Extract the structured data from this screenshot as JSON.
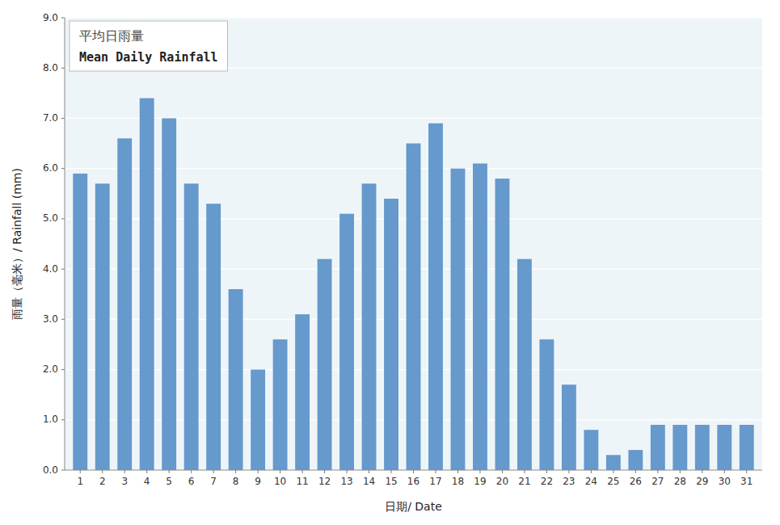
{
  "chart_data": {
    "type": "bar",
    "xlabel": "日期/ Date",
    "ylabel": "雨量（毫米）/ Rainfall (mm)",
    "annotations": [
      "平均日雨量",
      "Mean Daily Rainfall"
    ],
    "x": [
      1,
      2,
      3,
      4,
      5,
      6,
      7,
      8,
      9,
      10,
      11,
      12,
      13,
      14,
      15,
      16,
      17,
      18,
      19,
      20,
      21,
      22,
      23,
      24,
      25,
      26,
      27,
      28,
      29,
      30,
      31
    ],
    "values": [
      5.9,
      5.7,
      6.6,
      7.4,
      7.0,
      5.7,
      5.3,
      3.6,
      2.0,
      2.6,
      3.1,
      4.2,
      5.1,
      5.7,
      5.4,
      6.5,
      6.9,
      6.0,
      6.1,
      5.8,
      4.2,
      2.6,
      1.7,
      0.8,
      0.3,
      0.4,
      0.9,
      0.9,
      0.9,
      0.9,
      0.9
    ],
    "color": "#6699cc",
    "xlim": [
      0.3,
      31.7
    ],
    "xticks": [
      1,
      2,
      3,
      4,
      5,
      6,
      7,
      8,
      9,
      10,
      11,
      12,
      13,
      14,
      15,
      16,
      17,
      18,
      19,
      20,
      21,
      22,
      23,
      24,
      25,
      26,
      27,
      28,
      29,
      30,
      31
    ],
    "ylim": [
      0,
      9
    ],
    "yticks": [
      {
        "value": 0,
        "label": "0.0"
      },
      {
        "value": 1,
        "label": "1.0"
      },
      {
        "value": 2,
        "label": "2.0"
      },
      {
        "value": 3,
        "label": "3.0"
      },
      {
        "value": 4,
        "label": "4.0"
      },
      {
        "value": 5,
        "label": "5.0"
      },
      {
        "value": 6,
        "label": "6.0"
      },
      {
        "value": 7,
        "label": "7.0"
      },
      {
        "value": 8,
        "label": "8.0"
      },
      {
        "value": 9,
        "label": "9.0"
      }
    ],
    "grid": true
  }
}
